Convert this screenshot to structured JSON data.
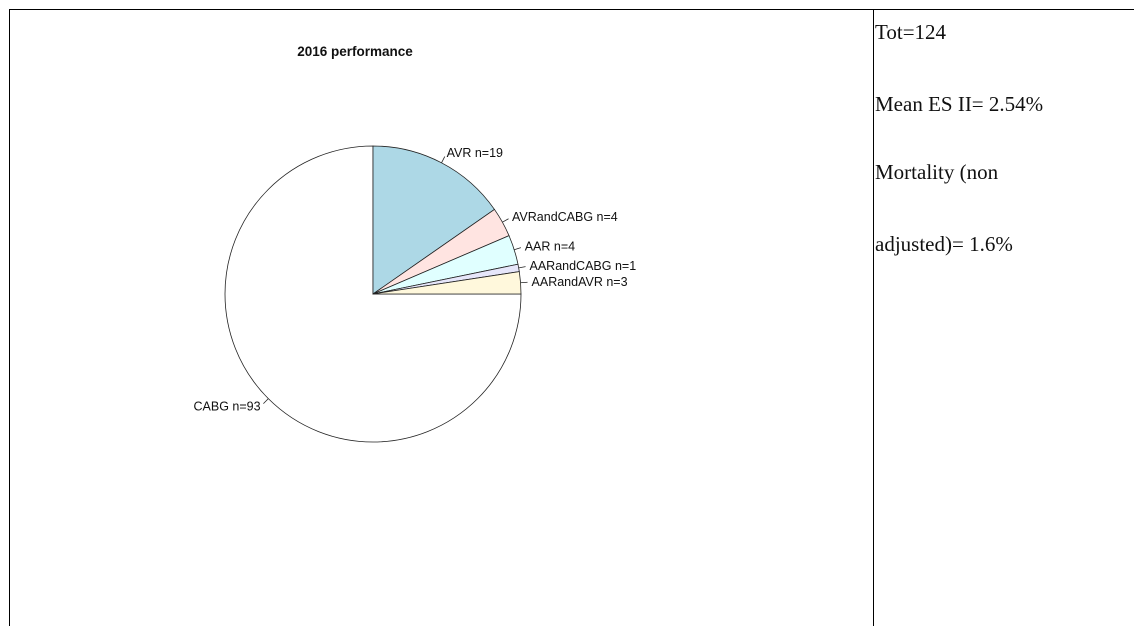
{
  "chart_data": {
    "type": "pie",
    "title": "2016 performance",
    "slices": [
      {
        "label": "CABG n=93",
        "value": 93,
        "color": "#ffffff"
      },
      {
        "label": "AVR n=19",
        "value": 19,
        "color": "#add8e6"
      },
      {
        "label": "AVRandCABG n=4",
        "value": 4,
        "color": "#ffe4e1"
      },
      {
        "label": "AAR n=4",
        "value": 4,
        "color": "#e0ffff"
      },
      {
        "label": "AARandCABG n=1",
        "value": 1,
        "color": "#e6e6fa"
      },
      {
        "label": "AARandAVR n=3",
        "value": 3,
        "color": "#fff8dc"
      }
    ],
    "direction": "clockwise",
    "start_angle_deg": 0
  },
  "stats": {
    "total": "Tot=124",
    "mean_es": "Mean ES II= 2.54%",
    "mortality_line1": "Mortality (non",
    "mortality_line2": "adjusted)= 1.6%"
  }
}
